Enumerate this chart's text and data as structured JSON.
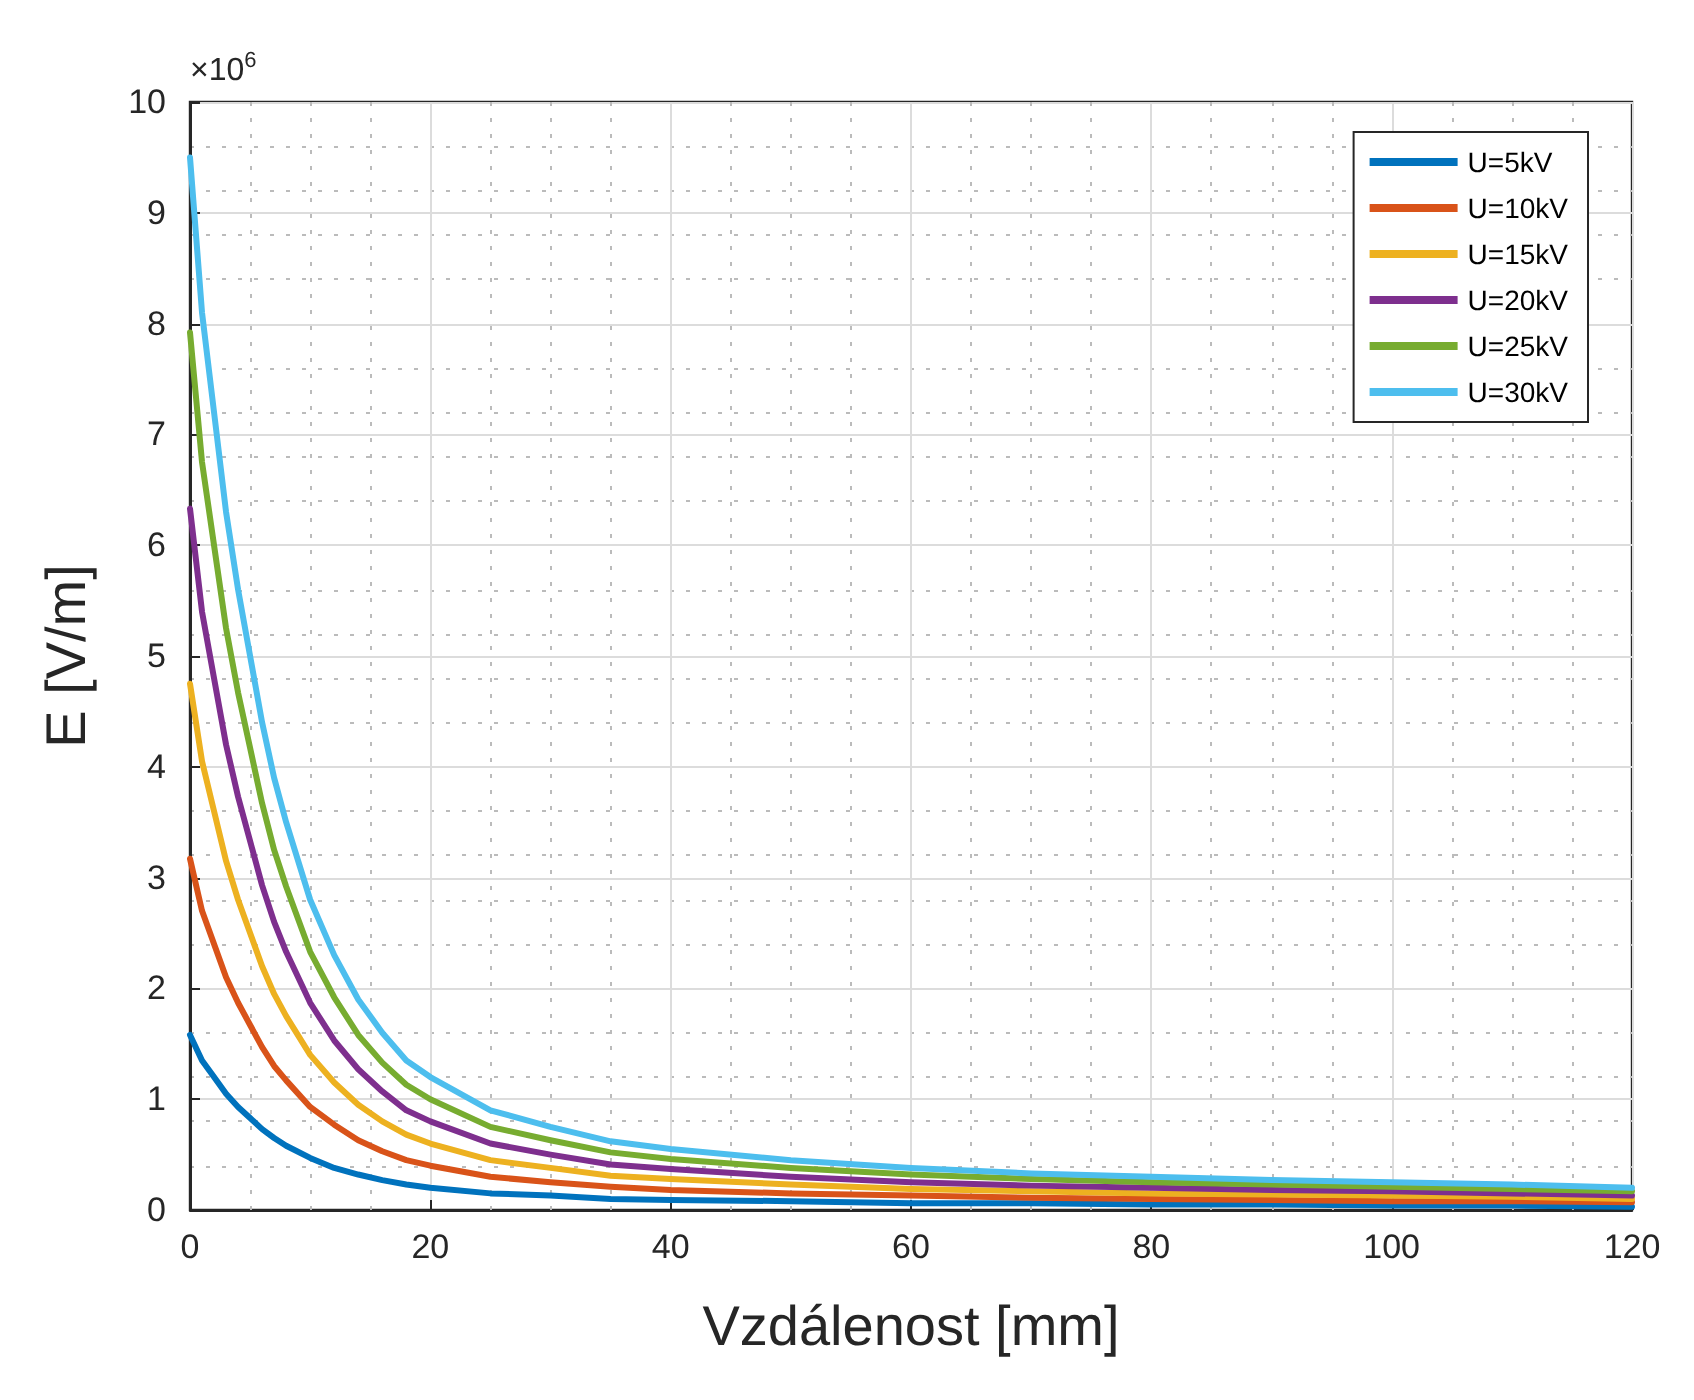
{
  "chart_data": {
    "type": "line",
    "xlabel": "Vzdálenost [mm]",
    "ylabel": "E [V/m]",
    "annotations": [
      "×10$^{6}$"
    ],
    "x": [
      0,
      1,
      2,
      3,
      4,
      5,
      6,
      7,
      8,
      10,
      12,
      14,
      16,
      18,
      20,
      25,
      30,
      35,
      40,
      50,
      60,
      70,
      80,
      90,
      100,
      110,
      120
    ],
    "series": [
      {
        "name": "U=5kV",
        "color": "#0072bd",
        "values": [
          1.58,
          1.35,
          1.2,
          1.05,
          0.93,
          0.83,
          0.73,
          0.65,
          0.58,
          0.47,
          0.38,
          0.32,
          0.27,
          0.23,
          0.2,
          0.15,
          0.13,
          0.1,
          0.09,
          0.08,
          0.06,
          0.06,
          0.05,
          0.05,
          0.04,
          0.04,
          0.03
        ]
      },
      {
        "name": "U=10kV",
        "color": "#d95319",
        "values": [
          3.17,
          2.7,
          2.4,
          2.1,
          1.87,
          1.67,
          1.47,
          1.3,
          1.17,
          0.93,
          0.77,
          0.63,
          0.53,
          0.45,
          0.4,
          0.3,
          0.25,
          0.21,
          0.18,
          0.15,
          0.13,
          0.11,
          0.1,
          0.09,
          0.08,
          0.08,
          0.07
        ]
      },
      {
        "name": "U=15kV",
        "color": "#edb120",
        "values": [
          4.75,
          4.05,
          3.6,
          3.15,
          2.8,
          2.5,
          2.2,
          1.95,
          1.75,
          1.4,
          1.15,
          0.95,
          0.8,
          0.68,
          0.6,
          0.45,
          0.38,
          0.31,
          0.28,
          0.23,
          0.19,
          0.17,
          0.15,
          0.14,
          0.13,
          0.12,
          0.1
        ]
      },
      {
        "name": "U=20kV",
        "color": "#7e2f8e",
        "values": [
          6.33,
          5.4,
          4.8,
          4.2,
          3.73,
          3.33,
          2.93,
          2.6,
          2.33,
          1.87,
          1.53,
          1.27,
          1.07,
          0.9,
          0.8,
          0.6,
          0.5,
          0.41,
          0.37,
          0.3,
          0.25,
          0.22,
          0.2,
          0.18,
          0.17,
          0.15,
          0.13
        ]
      },
      {
        "name": "U=25kV",
        "color": "#77ac30",
        "values": [
          7.92,
          6.75,
          6.0,
          5.25,
          4.67,
          4.17,
          3.67,
          3.25,
          2.92,
          2.33,
          1.92,
          1.58,
          1.33,
          1.13,
          1.0,
          0.75,
          0.63,
          0.52,
          0.46,
          0.38,
          0.32,
          0.28,
          0.25,
          0.23,
          0.21,
          0.19,
          0.17
        ]
      },
      {
        "name": "U=30kV",
        "color": "#4dbeee",
        "values": [
          9.5,
          8.1,
          7.2,
          6.3,
          5.6,
          5.0,
          4.4,
          3.9,
          3.5,
          2.8,
          2.3,
          1.9,
          1.6,
          1.35,
          1.2,
          0.9,
          0.75,
          0.62,
          0.55,
          0.45,
          0.38,
          0.33,
          0.3,
          0.27,
          0.25,
          0.23,
          0.2
        ]
      }
    ],
    "xlim": [
      0,
      120
    ],
    "xticks": [
      0,
      20,
      40,
      60,
      80,
      100,
      120
    ],
    "ylim": [
      0,
      10
    ],
    "yticks": [
      0,
      1,
      2,
      3,
      4,
      5,
      6,
      7,
      8,
      9,
      10
    ],
    "grid": true,
    "legend": "top right",
    "marker": "none",
    "line_style": "solid"
  }
}
